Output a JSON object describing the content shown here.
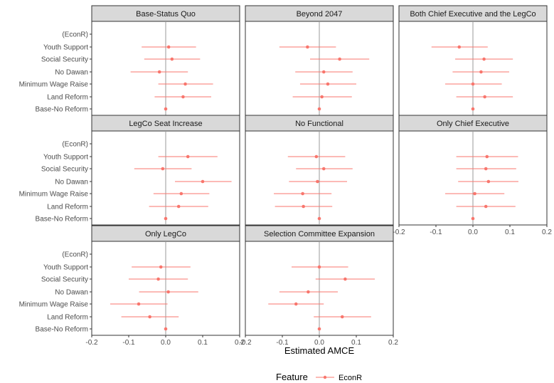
{
  "chart_data": {
    "type": "scatter",
    "subtype": "coefficient-plot-with-error-bars",
    "xlabel": "Estimated AMCE",
    "ylabel": "",
    "xlim": [
      -0.2,
      0.2
    ],
    "x_ticks": [
      -0.2,
      -0.1,
      0.0,
      0.1,
      0.2
    ],
    "x_tick_labels": [
      "-0.2",
      "-0.1",
      "0.0",
      "0.1",
      "0.2"
    ],
    "categories": [
      "(EconR)",
      "Youth Support",
      "Social Security",
      "No Dawan",
      "Minimum Wage Raise",
      "Land Reform",
      "Base-No Reform"
    ],
    "reference_line_x": 0,
    "grid": false,
    "point_color": "#F8766D",
    "zero_line_color": "#9a9a9a",
    "panel_strip_color": "#d9d9d9",
    "legend": {
      "title": "Feature",
      "label": "EconR",
      "position": "bottom"
    },
    "panels": [
      {
        "title": "Base-Status Quo",
        "points": [
          {
            "category": "Youth Support",
            "estimate": 0.008,
            "lower": -0.065,
            "upper": 0.082
          },
          {
            "category": "Social Security",
            "estimate": 0.017,
            "lower": -0.058,
            "upper": 0.093
          },
          {
            "category": "No Dawan",
            "estimate": -0.017,
            "lower": -0.095,
            "upper": 0.06
          },
          {
            "category": "Minimum Wage Raise",
            "estimate": 0.053,
            "lower": -0.02,
            "upper": 0.128
          },
          {
            "category": "Land Reform",
            "estimate": 0.047,
            "lower": -0.03,
            "upper": 0.123
          },
          {
            "category": "Base-No Reform",
            "estimate": 0.0,
            "lower": 0.0,
            "upper": 0.0
          }
        ]
      },
      {
        "title": "Beyond 2047",
        "points": [
          {
            "category": "Youth Support",
            "estimate": -0.032,
            "lower": -0.108,
            "upper": 0.045
          },
          {
            "category": "Social Security",
            "estimate": 0.055,
            "lower": -0.025,
            "upper": 0.135
          },
          {
            "category": "No Dawan",
            "estimate": 0.012,
            "lower": -0.065,
            "upper": 0.09
          },
          {
            "category": "Minimum Wage Raise",
            "estimate": 0.023,
            "lower": -0.052,
            "upper": 0.1
          },
          {
            "category": "Land Reform",
            "estimate": 0.007,
            "lower": -0.072,
            "upper": 0.088
          },
          {
            "category": "Base-No Reform",
            "estimate": 0.0,
            "lower": 0.0,
            "upper": 0.0
          }
        ]
      },
      {
        "title": "Both Chief Executive and the LegCo",
        "points": [
          {
            "category": "Youth Support",
            "estimate": -0.037,
            "lower": -0.112,
            "upper": 0.04
          },
          {
            "category": "Social Security",
            "estimate": 0.03,
            "lower": -0.048,
            "upper": 0.108
          },
          {
            "category": "No Dawan",
            "estimate": 0.022,
            "lower": -0.055,
            "upper": 0.098
          },
          {
            "category": "Minimum Wage Raise",
            "estimate": 0.0,
            "lower": -0.075,
            "upper": 0.078
          },
          {
            "category": "Land Reform",
            "estimate": 0.032,
            "lower": -0.045,
            "upper": 0.108
          },
          {
            "category": "Base-No Reform",
            "estimate": 0.0,
            "lower": 0.0,
            "upper": 0.0
          }
        ]
      },
      {
        "title": "LegCo Seat Increase",
        "points": [
          {
            "category": "Youth Support",
            "estimate": 0.06,
            "lower": -0.02,
            "upper": 0.14
          },
          {
            "category": "Social Security",
            "estimate": -0.008,
            "lower": -0.085,
            "upper": 0.07
          },
          {
            "category": "No Dawan",
            "estimate": 0.1,
            "lower": 0.025,
            "upper": 0.178
          },
          {
            "category": "Minimum Wage Raise",
            "estimate": 0.042,
            "lower": -0.033,
            "upper": 0.118
          },
          {
            "category": "Land Reform",
            "estimate": 0.035,
            "lower": -0.045,
            "upper": 0.115
          },
          {
            "category": "Base-No Reform",
            "estimate": 0.0,
            "lower": 0.0,
            "upper": 0.0
          }
        ]
      },
      {
        "title": "No Functional",
        "points": [
          {
            "category": "Youth Support",
            "estimate": -0.008,
            "lower": -0.085,
            "upper": 0.07
          },
          {
            "category": "Social Security",
            "estimate": 0.012,
            "lower": -0.063,
            "upper": 0.09
          },
          {
            "category": "No Dawan",
            "estimate": -0.005,
            "lower": -0.082,
            "upper": 0.075
          },
          {
            "category": "Minimum Wage Raise",
            "estimate": -0.045,
            "lower": -0.123,
            "upper": 0.033
          },
          {
            "category": "Land Reform",
            "estimate": -0.043,
            "lower": -0.12,
            "upper": 0.035
          },
          {
            "category": "Base-No Reform",
            "estimate": 0.0,
            "lower": 0.0,
            "upper": 0.0
          }
        ]
      },
      {
        "title": "Only Chief Executive",
        "points": [
          {
            "category": "Youth Support",
            "estimate": 0.038,
            "lower": -0.045,
            "upper": 0.122
          },
          {
            "category": "Social Security",
            "estimate": 0.035,
            "lower": -0.045,
            "upper": 0.117
          },
          {
            "category": "No Dawan",
            "estimate": 0.042,
            "lower": -0.04,
            "upper": 0.123
          },
          {
            "category": "Minimum Wage Raise",
            "estimate": 0.005,
            "lower": -0.075,
            "upper": 0.085
          },
          {
            "category": "Land Reform",
            "estimate": 0.035,
            "lower": -0.045,
            "upper": 0.115
          },
          {
            "category": "Base-No Reform",
            "estimate": 0.0,
            "lower": 0.0,
            "upper": 0.0
          }
        ]
      },
      {
        "title": "Only LegCo",
        "points": [
          {
            "category": "Youth Support",
            "estimate": -0.013,
            "lower": -0.092,
            "upper": 0.067
          },
          {
            "category": "Social Security",
            "estimate": -0.02,
            "lower": -0.1,
            "upper": 0.06
          },
          {
            "category": "No Dawan",
            "estimate": 0.007,
            "lower": -0.072,
            "upper": 0.088
          },
          {
            "category": "Minimum Wage Raise",
            "estimate": -0.073,
            "lower": -0.15,
            "upper": 0.005
          },
          {
            "category": "Land Reform",
            "estimate": -0.043,
            "lower": -0.12,
            "upper": 0.035
          },
          {
            "category": "Base-No Reform",
            "estimate": 0.0,
            "lower": 0.0,
            "upper": 0.0
          }
        ]
      },
      {
        "title": "Selection Committee Expansion",
        "points": [
          {
            "category": "Youth Support",
            "estimate": 0.0,
            "lower": -0.075,
            "upper": 0.078
          },
          {
            "category": "Social Security",
            "estimate": 0.07,
            "lower": -0.01,
            "upper": 0.15
          },
          {
            "category": "No Dawan",
            "estimate": -0.03,
            "lower": -0.108,
            "upper": 0.05
          },
          {
            "category": "Minimum Wage Raise",
            "estimate": -0.063,
            "lower": -0.138,
            "upper": 0.012
          },
          {
            "category": "Land Reform",
            "estimate": 0.062,
            "lower": -0.015,
            "upper": 0.14
          },
          {
            "category": "Base-No Reform",
            "estimate": 0.0,
            "lower": 0.0,
            "upper": 0.0
          }
        ]
      }
    ]
  }
}
